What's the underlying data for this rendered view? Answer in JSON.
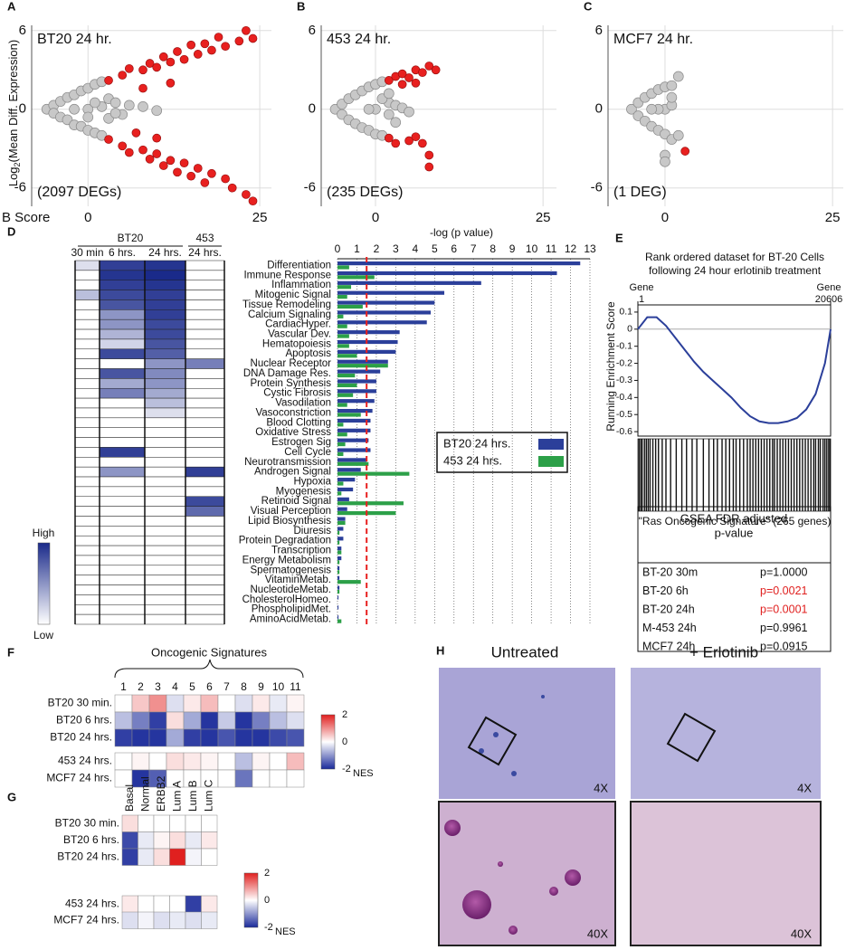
{
  "chart_data": [
    {
      "type": "scatter",
      "label": "A",
      "title": "BT20 24 hr.",
      "annotation": "(2097 DEGs)",
      "ylabel": [
        "Log",
        "2",
        "(Mean Diff. Expression)"
      ],
      "xlabel": "B Score",
      "xlim": [
        -8.2,
        26.7
      ],
      "ylim": [
        -7.4,
        6.4
      ],
      "xticks": [
        0,
        25
      ],
      "yticks": [
        -6,
        0,
        6
      ],
      "series": [
        {
          "color": "#c8c8c8",
          "x": [
            -6,
            -5,
            -5,
            -4,
            -4,
            -3,
            -3,
            -2,
            -2,
            -1,
            -1,
            0,
            0,
            0,
            1,
            1,
            2,
            2,
            3,
            3,
            4,
            5,
            6,
            8,
            10,
            -2,
            2,
            4,
            1,
            0
          ],
          "values": [
            0,
            0.3,
            -0.3,
            0.6,
            -0.6,
            0.9,
            -0.8,
            1.1,
            -1.2,
            1.4,
            -1.3,
            1.6,
            -1.6,
            0,
            1.9,
            -1.8,
            2.1,
            -2.0,
            0.8,
            -0.7,
            0.5,
            -0.4,
            0.3,
            0.2,
            -0.1,
            0,
            0.2,
            -0.3,
            0.5,
            -0.6
          ]
        },
        {
          "color": "#e8201f",
          "x": [
            3,
            5,
            6,
            8,
            9,
            10,
            11,
            12,
            13,
            14,
            15,
            16,
            17,
            18,
            19,
            20,
            22,
            23,
            24,
            8,
            12,
            3,
            5,
            6,
            8,
            9,
            10,
            11,
            12,
            13,
            14,
            15,
            16,
            17,
            18,
            20,
            21,
            23,
            24,
            7,
            10
          ],
          "values": [
            2.2,
            2.6,
            3.1,
            3.0,
            3.5,
            3.2,
            4.0,
            3.6,
            4.4,
            3.8,
            4.9,
            4.2,
            5.0,
            4.5,
            5.5,
            4.8,
            5.2,
            6.0,
            5.4,
            1.6,
            2.0,
            -2.3,
            -2.8,
            -3.3,
            -3.1,
            -3.8,
            -3.4,
            -4.3,
            -3.9,
            -4.8,
            -4.1,
            -5.1,
            -4.5,
            -5.6,
            -4.9,
            -5.3,
            -6.0,
            -6.5,
            -7.0,
            -1.8,
            -2.2
          ]
        }
      ]
    },
    {
      "type": "scatter",
      "label": "B",
      "title": "453 24 hr.",
      "annotation": "(235 DEGs)",
      "xlim": [
        -8.1,
        27
      ],
      "ylim": [
        -7.4,
        6.4
      ],
      "xticks": [
        0,
        25
      ],
      "yticks": [
        -6,
        0,
        6
      ],
      "series": [
        {
          "color": "#c8c8c8",
          "x": [
            -6,
            -5,
            -5,
            -4,
            -4,
            -3,
            -3,
            -2,
            -2,
            -1,
            -1,
            0,
            0,
            0,
            1,
            1,
            2,
            2,
            3,
            4,
            5,
            -1,
            1,
            2,
            3
          ],
          "values": [
            0,
            0.4,
            -0.4,
            0.8,
            -0.8,
            1.1,
            -1.1,
            1.4,
            -1.4,
            1.7,
            -1.6,
            1.9,
            -1.9,
            0,
            2.1,
            -2.0,
            0.5,
            -0.4,
            0.3,
            0.1,
            -0.2,
            0,
            0.8,
            1.2,
            -1.0
          ]
        },
        {
          "color": "#e8201f",
          "x": [
            2,
            3,
            4,
            5,
            6,
            7,
            8,
            9,
            4,
            6,
            2,
            3,
            5,
            7,
            8,
            8,
            6
          ],
          "values": [
            2.2,
            2.5,
            2.7,
            2.4,
            3.0,
            2.8,
            3.3,
            3.0,
            1.9,
            2.0,
            -2.2,
            -2.6,
            -2.4,
            -2.6,
            -3.5,
            -4.4,
            -2.1
          ]
        }
      ]
    },
    {
      "type": "scatter",
      "label": "C",
      "title": "MCF7 24 hr.",
      "annotation": "(1 DEG)",
      "xlim": [
        -8.5,
        26.6
      ],
      "ylim": [
        -7.4,
        6.4
      ],
      "xticks": [
        0,
        25
      ],
      "yticks": [
        -6,
        0,
        6
      ],
      "series": [
        {
          "color": "#c8c8c8",
          "x": [
            -5,
            -4,
            -4,
            -3,
            -3,
            -2,
            -2,
            -1,
            -1,
            0,
            0,
            0,
            1,
            1,
            2,
            2,
            1,
            -1,
            0,
            0,
            1,
            -2
          ],
          "values": [
            0,
            0.5,
            -0.5,
            0.9,
            -0.9,
            1.2,
            -1.3,
            1.5,
            -1.6,
            1.7,
            -1.9,
            0,
            1.8,
            -2.3,
            2.5,
            -2.0,
            0.3,
            0,
            -3.5,
            -4.0,
            0.9,
            0
          ]
        },
        {
          "color": "#e8201f",
          "x": [
            3
          ],
          "values": [
            -3.2
          ]
        }
      ]
    },
    {
      "type": "heatmap",
      "label": "D",
      "columns": [
        "30 min",
        "6 hrs.",
        "24 hrs.",
        "24 hrs."
      ],
      "groups": [
        {
          "name": "BT20",
          "columns": [
            0,
            1,
            2
          ]
        },
        {
          "name": "453",
          "columns": [
            3
          ]
        }
      ],
      "legend": [
        "High",
        "Low"
      ],
      "zlim": [
        0,
        1
      ],
      "colors": [
        "#ffffff",
        "#1a2a8a"
      ],
      "values": [
        [
          0.15,
          0.9,
          0.95,
          0
        ],
        [
          0,
          0.95,
          1,
          0
        ],
        [
          0,
          0.9,
          0.95,
          0
        ],
        [
          0.3,
          0.85,
          0.9,
          0
        ],
        [
          0,
          0.8,
          0.9,
          0
        ],
        [
          0,
          0.5,
          0.9,
          0
        ],
        [
          0,
          0.5,
          0.85,
          0
        ],
        [
          0,
          0.35,
          0.85,
          0
        ],
        [
          0,
          0.2,
          0.8,
          0
        ],
        [
          0,
          0.85,
          0.75,
          0
        ],
        [
          0,
          0,
          0.5,
          0.6
        ],
        [
          0,
          0.8,
          0.55,
          0
        ],
        [
          0,
          0.4,
          0.5,
          0
        ],
        [
          0,
          0.6,
          0.4,
          0
        ],
        [
          0,
          0,
          0.3,
          0
        ],
        [
          0,
          0,
          0.15,
          0
        ],
        [
          0,
          0,
          0,
          0
        ],
        [
          0,
          0,
          0,
          0
        ],
        [
          0,
          0,
          0,
          0
        ],
        [
          0,
          0.9,
          0,
          0
        ],
        [
          0,
          0,
          0,
          0
        ],
        [
          0,
          0.5,
          0,
          0.9
        ],
        [
          0,
          0,
          0,
          0
        ],
        [
          0,
          0,
          0,
          0
        ],
        [
          0,
          0,
          0,
          0.85
        ],
        [
          0,
          0,
          0,
          0.7
        ],
        [
          0,
          0,
          0,
          0
        ],
        [
          0,
          0,
          0,
          0
        ],
        [
          0,
          0,
          0,
          0
        ],
        [
          0,
          0,
          0,
          0
        ],
        [
          0,
          0,
          0,
          0
        ],
        [
          0,
          0,
          0,
          0
        ],
        [
          0,
          0,
          0,
          0
        ],
        [
          0,
          0,
          0,
          0
        ],
        [
          0,
          0,
          0,
          0
        ],
        [
          0,
          0,
          0,
          0
        ],
        [
          0,
          0,
          0,
          0
        ]
      ]
    },
    {
      "type": "hbar",
      "xlabel": "-log (p value)",
      "xlim": [
        0,
        13
      ],
      "xticks": [
        0,
        1,
        2,
        3,
        4,
        5,
        6,
        7,
        8,
        9,
        10,
        11,
        12,
        13
      ],
      "threshold": 1.5,
      "threshold_color": "#e8201f",
      "grid": true,
      "categories": [
        "Differentiation",
        "Immune Response",
        "Inflammation",
        "Mitogenic Signal",
        "Tissue Remodeling",
        "Calcium Signaling",
        "CardiacHyper.",
        "Vascular Dev.",
        "Hematopoiesis",
        "Apoptosis",
        "Nuclear Receptor",
        "DNA Damage Res.",
        "Protein Synthesis",
        "Cystic Fibrosis",
        "Vasodilation",
        "Vasoconstriction",
        "Blood Clotting",
        "Oxidative Stress",
        "Estrogen Sig",
        "Cell Cycle",
        "Neurotransmission",
        "Androgen Signal",
        "Hypoxia",
        "Myogenesis",
        "Retinoid Signal",
        "Visual Perception",
        "Lipid Biosynthesis",
        "Diuresis",
        "Protein Degradation",
        "Transcription",
        "Energy Metabolism",
        "Spermatogenesis",
        "VitaminMetab.",
        "NucleotideMetab.",
        "CholesterolHomeo.",
        "PhospholipidMet.",
        "AminoAcidMetab."
      ],
      "series": [
        {
          "name": "BT20 24 hrs.",
          "color": "#2b3f9a",
          "values": [
            12.5,
            11.3,
            7.4,
            5.5,
            5.0,
            4.8,
            4.6,
            3.2,
            3.1,
            3.0,
            2.6,
            2.2,
            2.0,
            2.0,
            1.9,
            1.8,
            1.7,
            1.7,
            1.6,
            1.7,
            1.5,
            1.2,
            0.9,
            0.8,
            0.6,
            0.5,
            0.4,
            0.3,
            0.3,
            0.2,
            0.2,
            0.1,
            0.1,
            0.1,
            0.05,
            0.05,
            0.05
          ]
        },
        {
          "name": "453 24 hrs.",
          "color": "#2ca048",
          "values": [
            0.6,
            1.9,
            0.7,
            0.5,
            1.3,
            0.3,
            0.5,
            0.6,
            0.6,
            1.0,
            2.6,
            0.9,
            1.0,
            0.8,
            0.5,
            1.2,
            0.3,
            0.5,
            0.4,
            0.3,
            1.6,
            3.7,
            0.3,
            0.2,
            3.4,
            3.0,
            0.4,
            0.1,
            0.1,
            0.2,
            0.1,
            0.1,
            1.2,
            0.1,
            0,
            0,
            0.2
          ]
        }
      ]
    },
    {
      "type": "line",
      "label": "E",
      "title": [
        "Rank ordered dataset for BT-20 Cells",
        "following 24 hour erlotinib treatment"
      ],
      "ylabel": "Running Enrichment Score",
      "x_ends": [
        {
          "value": 1,
          "label": "Gene\n1"
        },
        {
          "value": 20606,
          "label": "Gene\n20606"
        }
      ],
      "xlim": [
        1,
        20606
      ],
      "ylim": [
        -0.626,
        0.142
      ],
      "yticks": [
        0.1,
        0,
        -0.1,
        -0.2,
        -0.3,
        -0.4,
        -0.5,
        -0.6
      ],
      "color": "#2b3f9a",
      "x": [
        1,
        1000,
        2000,
        3000,
        4000,
        5000,
        6000,
        7000,
        8000,
        9000,
        10000,
        11000,
        12000,
        13000,
        14000,
        15000,
        16000,
        17000,
        18000,
        19000,
        20000,
        20606
      ],
      "values": [
        0,
        0.07,
        0.07,
        0.02,
        -0.05,
        -0.12,
        -0.19,
        -0.25,
        -0.3,
        -0.35,
        -0.4,
        -0.46,
        -0.51,
        -0.54,
        -0.55,
        -0.55,
        -0.54,
        -0.52,
        -0.47,
        -0.38,
        -0.2,
        0
      ],
      "hits": [
        120,
        300,
        450,
        700,
        900,
        1100,
        1300,
        1600,
        1900,
        2200,
        2600,
        3000,
        3500,
        4100,
        4700,
        5200,
        5800,
        6300,
        7000,
        7600,
        8100,
        8500,
        9000,
        9400,
        9800,
        10200,
        10500,
        10900,
        11300,
        11700,
        12000,
        12300,
        12600,
        12900,
        13200,
        13500,
        13800,
        14100,
        14400,
        14600,
        14900,
        15200,
        15500,
        15800,
        16100,
        16400,
        16700,
        17000,
        17300,
        17600,
        17900,
        18200,
        18500,
        18800,
        19000,
        19300,
        19500,
        19800,
        20000,
        20200,
        20400,
        20550
      ],
      "hits_label": "\"Ras Oncogenic Signature\" (265 genes)"
    },
    {
      "type": "heatmap",
      "label": "F",
      "title": "Oncogenic Signatures",
      "columns": [
        1,
        2,
        3,
        4,
        5,
        6,
        7,
        8,
        9,
        10,
        11
      ],
      "rows": [
        "BT20 30 min.",
        "BT20 6 hrs.",
        "BT20 24 hrs.",
        "453 24 hrs.",
        "MCF7 24 hrs."
      ],
      "zlim": [
        -2,
        2
      ],
      "zticks": [
        2,
        0,
        -2
      ],
      "zlabel": "NES",
      "colors": [
        "#1a2a9a",
        "#ffffff",
        "#e0201f"
      ],
      "values": [
        [
          0,
          0.5,
          1.0,
          -0.3,
          0.2,
          0.6,
          0,
          -0.3,
          0.2,
          -0.2,
          0.1
        ],
        [
          -0.6,
          -1.2,
          -1.8,
          0.3,
          -0.8,
          -1.9,
          -0.5,
          -1.9,
          -1.2,
          -0.6,
          -0.3
        ],
        [
          -1.8,
          -1.9,
          -1.9,
          -0.8,
          -1.8,
          -1.9,
          -1.6,
          -1.9,
          -1.9,
          -1.7,
          -1.6
        ],
        [
          0,
          0.1,
          0,
          0.3,
          0.2,
          0.1,
          0,
          -0.6,
          0.1,
          0,
          0.6
        ],
        [
          0,
          -1.9,
          -1.5,
          0,
          0,
          0,
          0,
          -1.3,
          0,
          0,
          0
        ]
      ]
    },
    {
      "type": "heatmap",
      "label": "G",
      "columns": [
        "Basal",
        "Normal",
        "ERBB2",
        "Lum A",
        "Lum B",
        "Lum C"
      ],
      "rows": [
        "BT20 30 min.",
        "BT20 6 hrs.",
        "BT20 24 hrs.",
        "453 24 hrs.",
        "MCF7 24 hrs."
      ],
      "zlim": [
        -2,
        2
      ],
      "zticks": [
        2,
        0,
        -2
      ],
      "zlabel": "NES",
      "colors": [
        "#1a2a9a",
        "#ffffff",
        "#e0201f"
      ],
      "values": [
        [
          0.3,
          0,
          0,
          0,
          0,
          0
        ],
        [
          -1.7,
          -0.2,
          0.1,
          0.3,
          -0.2,
          0.2
        ],
        [
          -1.8,
          -0.2,
          0.3,
          2,
          -0.1,
          0
        ],
        [
          0.2,
          0,
          0,
          0,
          -1.8,
          0.2
        ],
        [
          -0.3,
          -0.1,
          -0.3,
          -0.2,
          -0.3,
          -0.2
        ]
      ]
    }
  ],
  "gsea_table": {
    "header": [
      "GSEA FDR adjusted",
      "p-value"
    ],
    "rows": [
      {
        "sample": "BT-20 30m",
        "p": "p=1.0000",
        "color": "#111111"
      },
      {
        "sample": "BT-20 6h",
        "p": "p=0.0021",
        "color": "#e0201f"
      },
      {
        "sample": "BT-20 24h",
        "p": "p=0.0001",
        "color": "#e0201f"
      },
      {
        "sample": "M-453 24h",
        "p": "p=0.9961",
        "color": "#111111"
      },
      {
        "sample": "MCF7 24h",
        "p": "p=0.0915",
        "color": "#111111"
      }
    ]
  },
  "micrographs": {
    "label": "H",
    "columns": [
      "Untreated",
      "+ Erlotinib"
    ],
    "magnifications": [
      "4X",
      "40X"
    ]
  }
}
